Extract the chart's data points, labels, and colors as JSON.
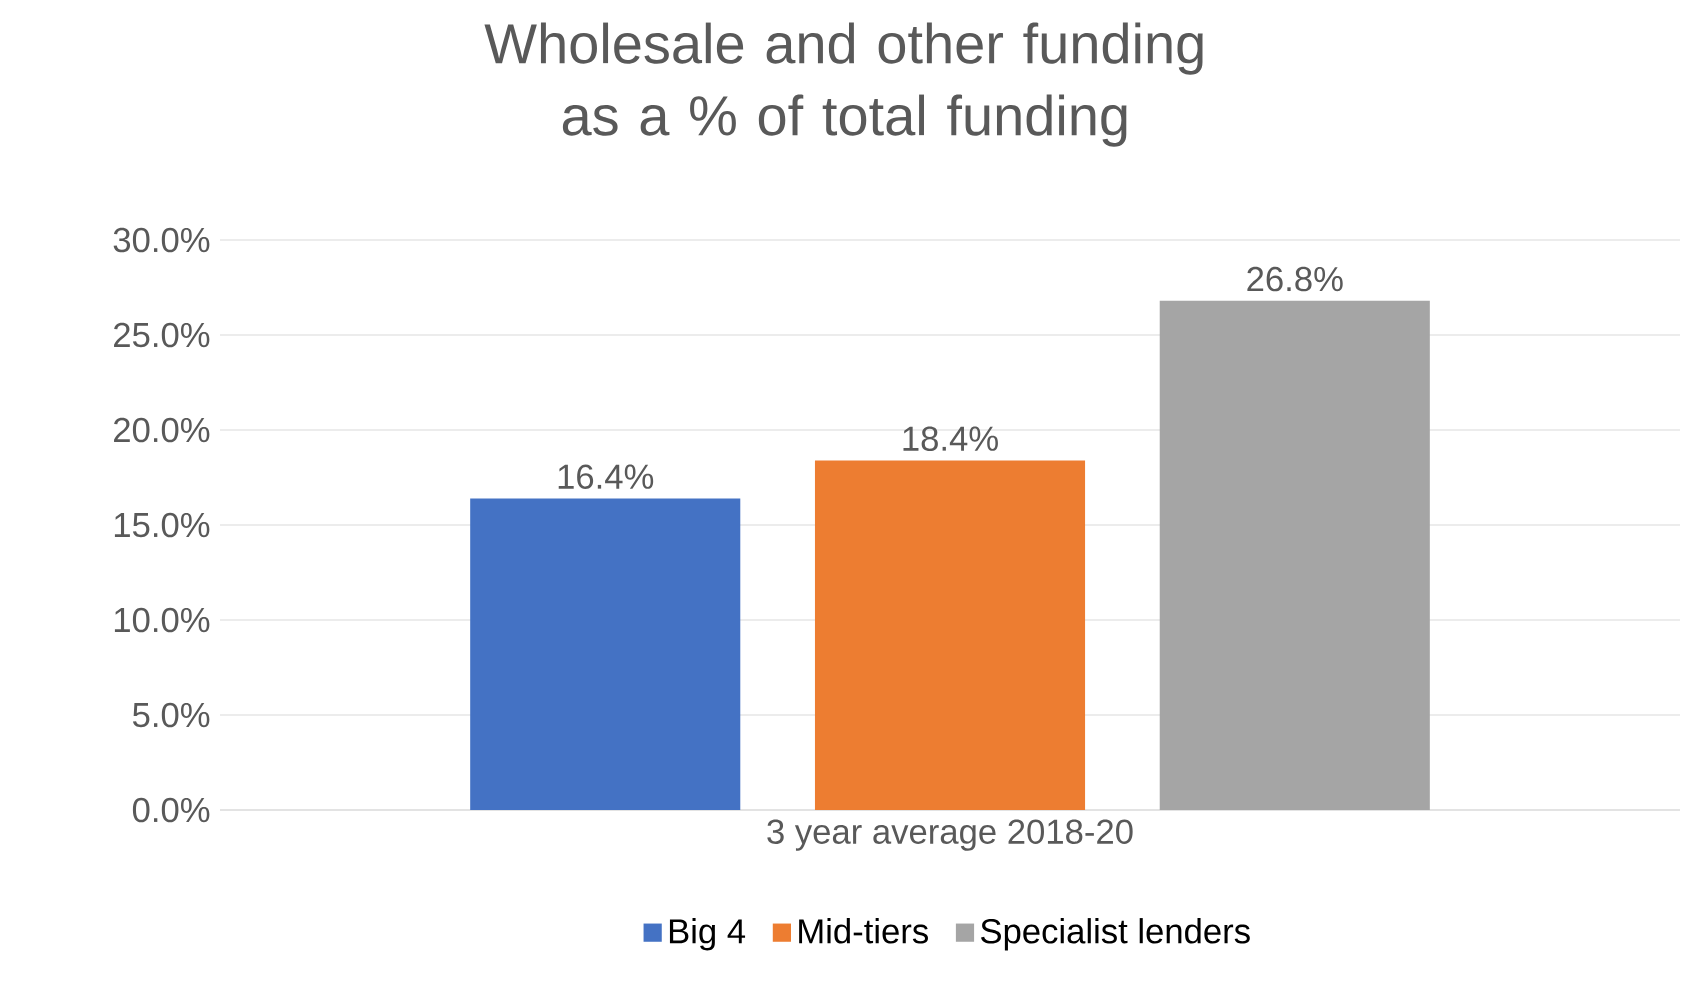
{
  "chart_data": {
    "type": "bar",
    "title": "Wholesale and other funding as a % of total funding",
    "categories": [
      "3 year average 2018-20"
    ],
    "series": [
      {
        "name": "Big 4",
        "color": "#4472c4",
        "values": [
          16.4
        ],
        "value_labels": [
          "16.4%"
        ]
      },
      {
        "name": "Mid-tiers",
        "color": "#ed7d31",
        "values": [
          18.4
        ],
        "value_labels": [
          "18.4%"
        ]
      },
      {
        "name": "Specialist lenders",
        "color": "#a5a5a5",
        "values": [
          26.8
        ],
        "value_labels": [
          "26.8%"
        ]
      }
    ],
    "ylim": [
      0,
      30
    ],
    "yticks": [
      {
        "value": 0,
        "label": "0.0%"
      },
      {
        "value": 5,
        "label": "5.0%"
      },
      {
        "value": 10,
        "label": "10.0%"
      },
      {
        "value": 15,
        "label": "15.0%"
      },
      {
        "value": 20,
        "label": "20.0%"
      },
      {
        "value": 25,
        "label": "25.0%"
      },
      {
        "value": 30,
        "label": "30.0%"
      }
    ],
    "grid": "y",
    "legend": "bottom"
  }
}
